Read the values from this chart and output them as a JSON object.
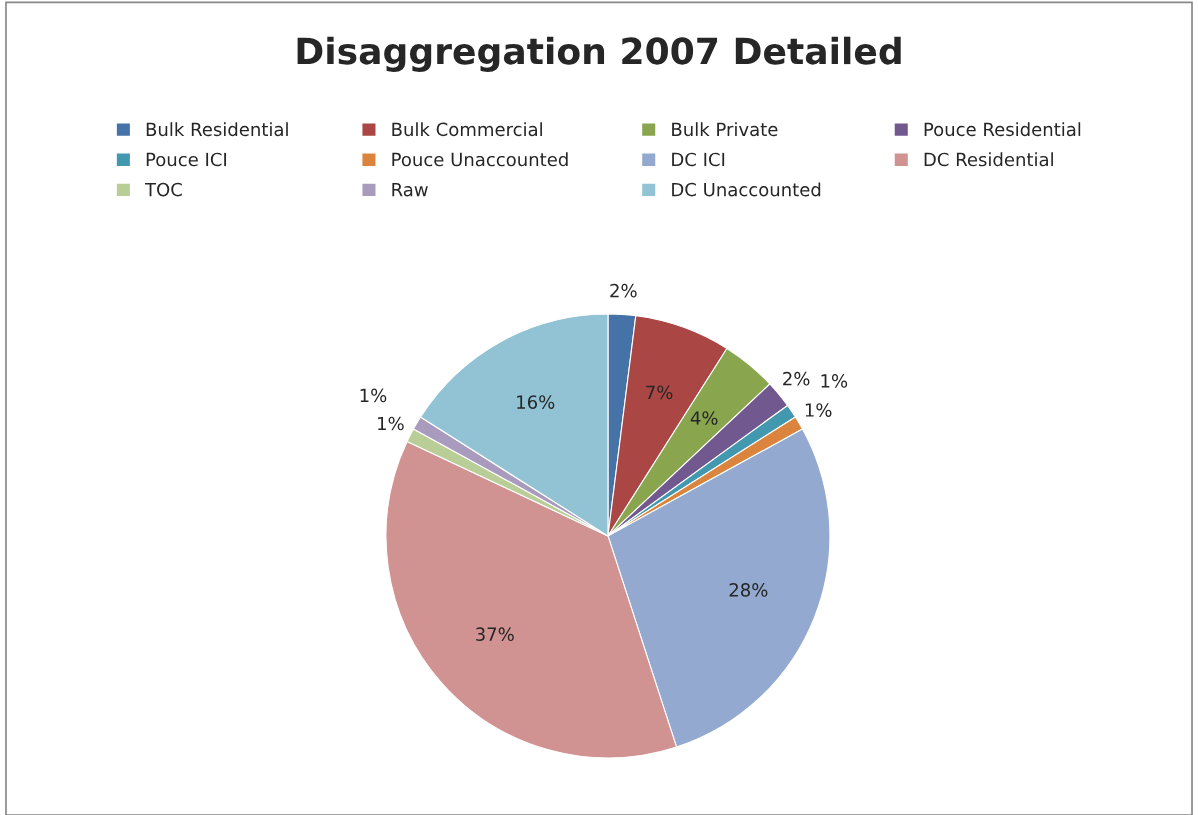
{
  "chart_data": {
    "type": "pie",
    "title": "Disaggregation 2007 Detailed",
    "categories": [
      "Bulk Residential",
      "Bulk Commercial",
      "Bulk Private",
      "Pouce Residential",
      "Pouce ICI",
      "Pouce Unaccounted",
      "DC ICI",
      "DC Residential",
      "TOC",
      "Raw",
      "DC Unaccounted"
    ],
    "values": [
      2,
      7,
      4,
      2,
      1,
      1,
      28,
      37,
      1,
      1,
      16
    ],
    "value_labels": [
      "2%",
      "7%",
      "4%",
      "2%",
      "1%",
      "1%",
      "28%",
      "37%",
      "1%",
      "1%",
      "16%"
    ],
    "colors": [
      "#4572a7",
      "#aa4643",
      "#89a54e",
      "#71588f",
      "#4198af",
      "#db843d",
      "#93a9cf",
      "#d19392",
      "#b9cd96",
      "#a99bbd",
      "#92c3d4"
    ],
    "legend": "top"
  }
}
